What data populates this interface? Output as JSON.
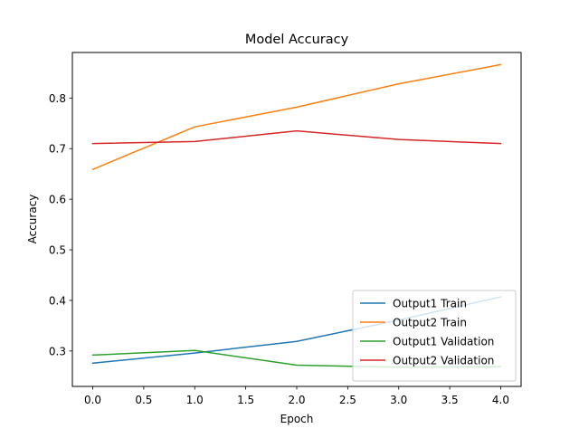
{
  "chart_data": {
    "type": "line",
    "title": "Model Accuracy",
    "xlabel": "Epoch",
    "ylabel": "Accuracy",
    "x": [
      0,
      1,
      2,
      3,
      4
    ],
    "xlim": [
      -0.2,
      4.2
    ],
    "ylim": [
      0.23,
      0.89
    ],
    "xticks": [
      0.0,
      0.5,
      1.0,
      1.5,
      2.0,
      2.5,
      3.0,
      3.5,
      4.0
    ],
    "xtick_labels": [
      "0.0",
      "0.5",
      "1.0",
      "1.5",
      "2.0",
      "2.5",
      "3.0",
      "3.5",
      "4.0"
    ],
    "yticks": [
      0.3,
      0.4,
      0.5,
      0.6,
      0.7,
      0.8
    ],
    "ytick_labels": [
      "0.3",
      "0.4",
      "0.5",
      "0.6",
      "0.7",
      "0.8"
    ],
    "grid": false,
    "legend_position": "lower-right",
    "series": [
      {
        "name": "Output1 Train",
        "color": "#1f77b4",
        "values": [
          0.276,
          0.296,
          0.319,
          0.361,
          0.407
        ]
      },
      {
        "name": "Output2 Train",
        "color": "#ff7f0e",
        "values": [
          0.659,
          0.743,
          0.782,
          0.828,
          0.866
        ]
      },
      {
        "name": "Output1 Validation",
        "color": "#2ca02c",
        "values": [
          0.292,
          0.301,
          0.272,
          0.268,
          0.269
        ]
      },
      {
        "name": "Output2 Validation",
        "color": "#d62728",
        "values": [
          0.71,
          0.714,
          0.735,
          0.718,
          0.71
        ]
      }
    ]
  }
}
